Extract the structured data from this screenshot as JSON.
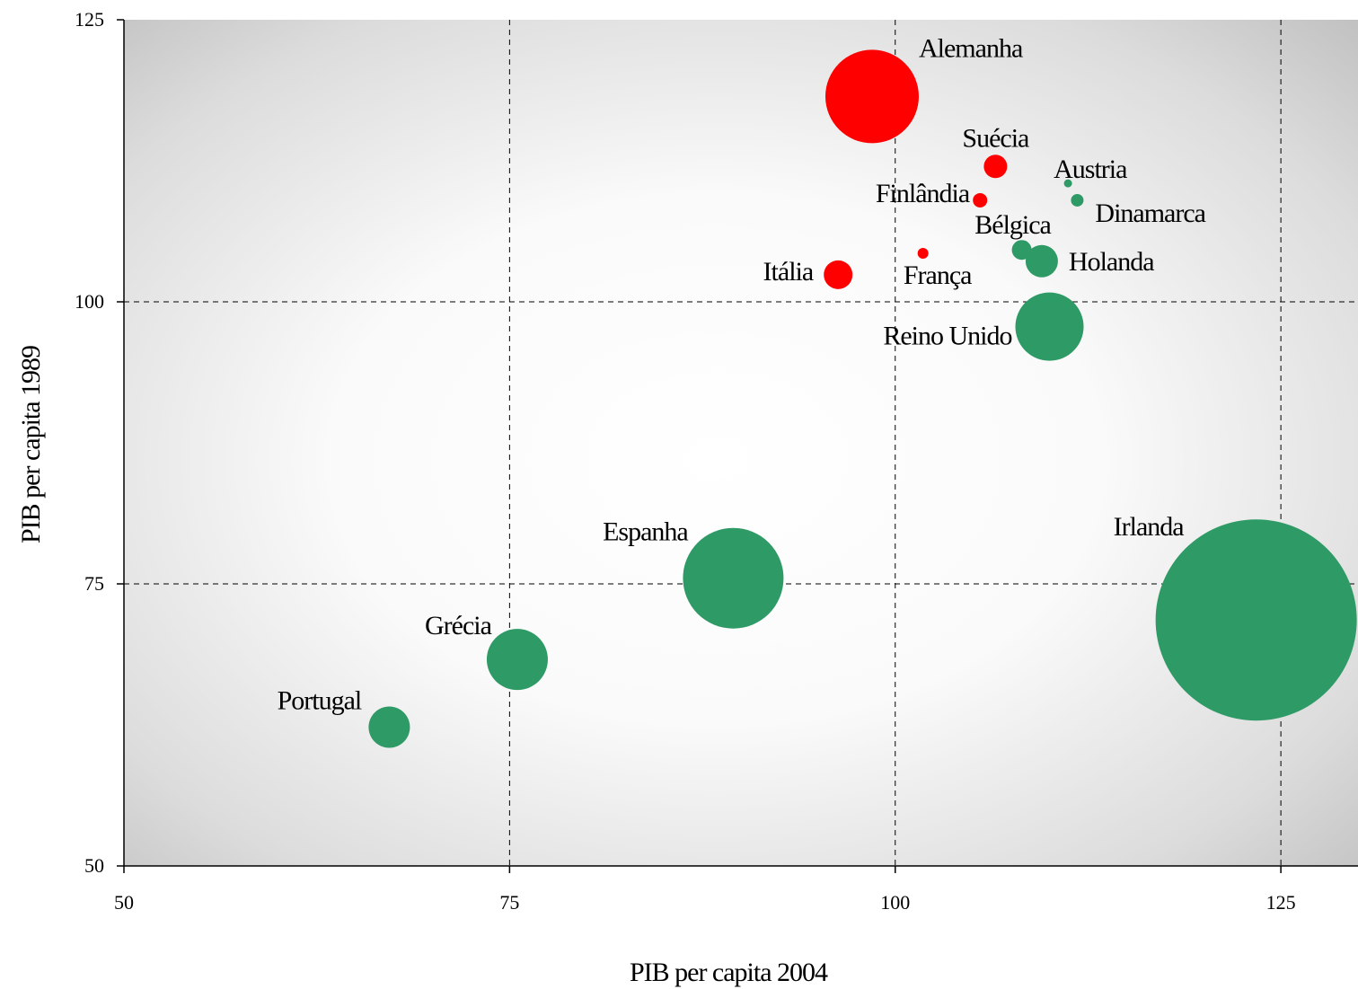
{
  "chart_data": {
    "type": "scatter",
    "title": "",
    "xlabel": "PIB per capita 2004",
    "ylabel": "PIB per capita 1989",
    "xlim": [
      50,
      130
    ],
    "ylim": [
      50,
      125
    ],
    "x_ticks": [
      "50",
      "75",
      "100",
      "125"
    ],
    "y_ticks": [
      "50",
      "75",
      "100",
      "125"
    ],
    "x_tick_values": [
      50,
      75,
      100,
      125
    ],
    "y_tick_values": [
      50,
      75,
      100,
      125
    ],
    "grid": "dashed",
    "background": "gradient-gray",
    "colors": {
      "positive": "#2e9a66",
      "negative": "#ff0000"
    },
    "points": [
      {
        "label": "Alemanha",
        "x": 98.5,
        "y": 118.2,
        "size": 52,
        "color": "#ff0000"
      },
      {
        "label": "Suécia",
        "x": 106.5,
        "y": 112.0,
        "size": 13,
        "color": "#ff0000"
      },
      {
        "label": "Austria",
        "x": 111.2,
        "y": 110.5,
        "size": 4.5,
        "color": "#2e9a66"
      },
      {
        "label": "Finlândia",
        "x": 105.5,
        "y": 109.0,
        "size": 8,
        "color": "#ff0000"
      },
      {
        "label": "Dinamarca",
        "x": 111.8,
        "y": 109.0,
        "size": 7,
        "color": "#2e9a66"
      },
      {
        "label": "Bélgica",
        "x": 108.2,
        "y": 104.6,
        "size": 11,
        "color": "#2e9a66"
      },
      {
        "label": "Holanda",
        "x": 109.5,
        "y": 103.6,
        "size": 18,
        "color": "#2e9a66"
      },
      {
        "label": "França",
        "x": 101.8,
        "y": 104.3,
        "size": 6,
        "color": "#ff0000"
      },
      {
        "label": "Itália",
        "x": 96.3,
        "y": 102.4,
        "size": 16,
        "color": "#ff0000"
      },
      {
        "label": "Reino Unido",
        "x": 110.0,
        "y": 97.8,
        "size": 38,
        "color": "#2e9a66"
      },
      {
        "label": "Espanha",
        "x": 89.5,
        "y": 75.5,
        "size": 56,
        "color": "#2e9a66"
      },
      {
        "label": "Irlanda",
        "x": 123.4,
        "y": 71.8,
        "size": 112,
        "color": "#2e9a66"
      },
      {
        "label": "Grécia",
        "x": 75.5,
        "y": 68.3,
        "size": 34,
        "color": "#2e9a66"
      },
      {
        "label": "Portugal",
        "x": 67.2,
        "y": 62.3,
        "size": 23,
        "color": "#2e9a66"
      }
    ]
  }
}
